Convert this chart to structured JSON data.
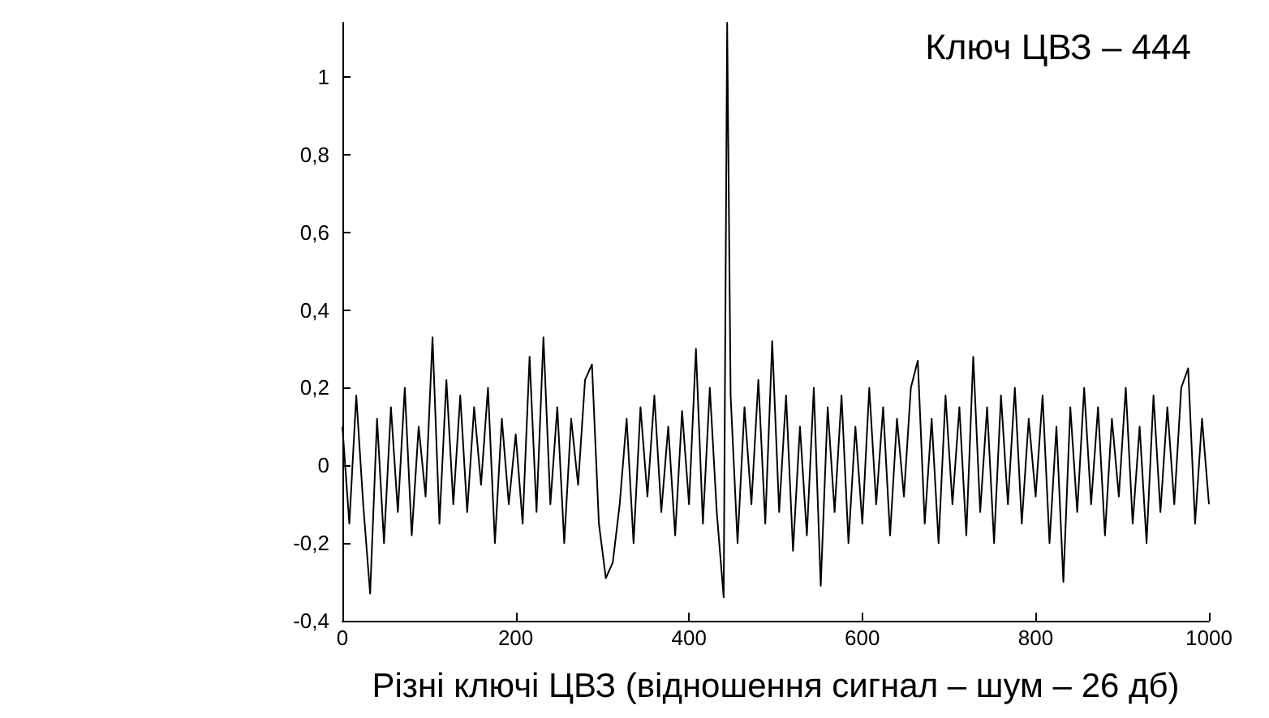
{
  "chart_data": {
    "type": "line",
    "xlabel": "Різні ключі ЦВЗ (відношення сигнал – шум – 26 дб)",
    "annotations": [
      "Ключ ЦВЗ – 444"
    ],
    "xlim": [
      0,
      1000
    ],
    "xticks": [
      0,
      200,
      400,
      600,
      800,
      1000
    ],
    "ylim": [
      -0.4,
      1.14
    ],
    "yticks": [
      {
        "value": -0.4,
        "label": "-0,4"
      },
      {
        "value": -0.2,
        "label": "-0,2"
      },
      0,
      {
        "value": 0.2,
        "label": "0,2"
      },
      {
        "value": 0.4,
        "label": "0,4"
      },
      {
        "value": 0.6,
        "label": "0,6"
      },
      {
        "value": 0.8,
        "label": "0,8"
      },
      1
    ],
    "grid": false,
    "marker": "none",
    "line_style": "solid",
    "x": [
      0,
      8,
      16,
      24,
      32,
      40,
      48,
      56,
      64,
      72,
      80,
      88,
      96,
      104,
      112,
      120,
      128,
      136,
      144,
      152,
      160,
      168,
      176,
      184,
      192,
      200,
      208,
      216,
      224,
      232,
      240,
      248,
      256,
      264,
      272,
      280,
      288,
      296,
      304,
      312,
      320,
      328,
      336,
      344,
      352,
      360,
      368,
      376,
      384,
      392,
      400,
      408,
      416,
      424,
      432,
      440,
      444,
      448,
      456,
      464,
      472,
      480,
      488,
      496,
      504,
      512,
      520,
      528,
      536,
      544,
      552,
      560,
      568,
      576,
      584,
      592,
      600,
      608,
      616,
      624,
      632,
      640,
      648,
      656,
      664,
      672,
      680,
      688,
      696,
      704,
      712,
      720,
      728,
      736,
      744,
      752,
      760,
      768,
      776,
      784,
      792,
      800,
      808,
      816,
      824,
      832,
      840,
      848,
      856,
      864,
      872,
      880,
      888,
      896,
      904,
      912,
      920,
      928,
      936,
      944,
      952,
      960,
      968,
      976,
      984,
      992,
      1000
    ],
    "series": [
      {
        "color": "#000000",
        "values": [
          0.1,
          -0.15,
          0.18,
          -0.1,
          -0.33,
          0.12,
          -0.2,
          0.15,
          -0.12,
          0.2,
          -0.18,
          0.1,
          -0.08,
          0.33,
          -0.15,
          0.22,
          -0.1,
          0.18,
          -0.12,
          0.15,
          -0.05,
          0.2,
          -0.2,
          0.12,
          -0.1,
          0.08,
          -0.15,
          0.28,
          -0.12,
          0.33,
          -0.1,
          0.15,
          -0.2,
          0.12,
          -0.05,
          0.22,
          0.26,
          -0.15,
          -0.29,
          -0.25,
          -0.1,
          0.12,
          -0.2,
          0.15,
          -0.08,
          0.18,
          -0.12,
          0.1,
          -0.18,
          0.14,
          -0.1,
          0.3,
          -0.15,
          0.2,
          -0.12,
          -0.34,
          1.14,
          0.18,
          -0.2,
          0.15,
          -0.1,
          0.22,
          -0.15,
          0.32,
          -0.12,
          0.18,
          -0.22,
          0.1,
          -0.18,
          0.2,
          -0.31,
          0.15,
          -0.12,
          0.18,
          -0.2,
          0.1,
          -0.15,
          0.2,
          -0.1,
          0.15,
          -0.18,
          0.12,
          -0.08,
          0.2,
          0.27,
          -0.15,
          0.12,
          -0.2,
          0.18,
          -0.1,
          0.15,
          -0.18,
          0.28,
          -0.12,
          0.15,
          -0.2,
          0.18,
          -0.1,
          0.2,
          -0.15,
          0.12,
          -0.08,
          0.18,
          -0.2,
          0.1,
          -0.3,
          0.15,
          -0.12,
          0.2,
          -0.1,
          0.15,
          -0.18,
          0.12,
          -0.08,
          0.2,
          -0.15,
          0.1,
          -0.2,
          0.18,
          -0.12,
          0.15,
          -0.1,
          0.2,
          0.25,
          -0.15,
          0.12,
          -0.1
        ]
      }
    ]
  }
}
